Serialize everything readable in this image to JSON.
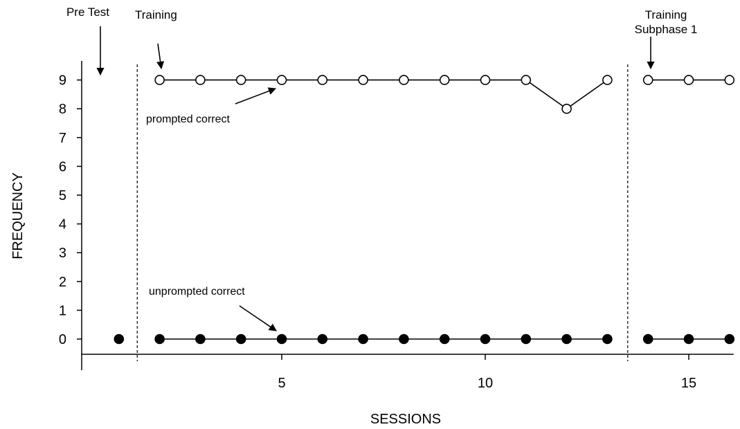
{
  "chart_data": {
    "type": "line",
    "title": "",
    "xlabel": "SESSIONS",
    "ylabel": "FREQUENCY",
    "xlim": [
      0,
      16
    ],
    "ylim": [
      -1,
      9
    ],
    "x_ticks": [
      5,
      10,
      15
    ],
    "y_ticks": [
      0,
      1,
      2,
      3,
      4,
      5,
      6,
      7,
      8,
      9
    ],
    "grid": false,
    "legend": "none",
    "phase_dividers": [
      1.45,
      13.5
    ],
    "phase_labels": [
      {
        "lines": [
          "Pre Test"
        ],
        "arrow_session": 0.5
      },
      {
        "lines": [
          "Training"
        ],
        "arrow_session": 2
      },
      {
        "lines": [
          "Training",
          "Subphase 1"
        ],
        "arrow_session": 14
      }
    ],
    "series": [
      {
        "name": "prompted correct",
        "marker": "open-circle",
        "segments": [
          {
            "x": [
              2,
              3,
              4,
              5,
              6,
              7,
              8,
              9,
              10,
              11,
              12,
              13
            ],
            "y": [
              9,
              9,
              9,
              9,
              9,
              9,
              9,
              9,
              9,
              9,
              8,
              9
            ]
          },
          {
            "x": [
              14,
              15,
              16
            ],
            "y": [
              9,
              9,
              9
            ]
          }
        ],
        "annotation_point": {
          "x": 5,
          "y": 9
        }
      },
      {
        "name": "unprompted correct",
        "marker": "filled-circle",
        "segments": [
          {
            "x": [
              1
            ],
            "y": [
              0
            ]
          },
          {
            "x": [
              2,
              3,
              4,
              5,
              6,
              7,
              8,
              9,
              10,
              11,
              12,
              13
            ],
            "y": [
              0,
              0,
              0,
              0,
              0,
              0,
              0,
              0,
              0,
              0,
              0,
              0
            ]
          },
          {
            "x": [
              14,
              15,
              16
            ],
            "y": [
              0,
              0,
              0
            ]
          }
        ],
        "annotation_point": {
          "x": 5,
          "y": 0
        }
      }
    ]
  }
}
